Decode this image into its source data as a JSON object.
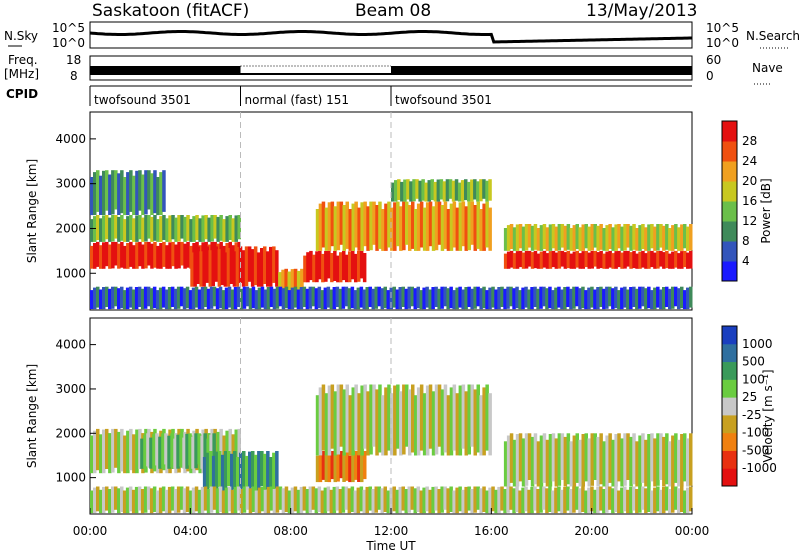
{
  "header": {
    "station": "Saskatoon (fitACF)",
    "beam": "Beam 08",
    "date": "13/May/2013"
  },
  "summary_panels": {
    "nsky_label": "N.Sky",
    "nsky_ticks": [
      "10^5",
      "10^0"
    ],
    "nsearch_label": "N.Search",
    "nsearch_ticks": [
      "10^5",
      "10^0"
    ],
    "freq_label_1": "Freq.",
    "freq_label_2": "[MHz]",
    "freq_ticks": [
      "18",
      "8"
    ],
    "nave_label": "Nave",
    "nave_ticks": [
      "60",
      "0"
    ],
    "cpid_label": "CPID",
    "cpid_segments": [
      {
        "label": "twofsound 3501",
        "start": 0,
        "end": 6
      },
      {
        "label": "normal (fast) 151",
        "start": 6,
        "end": 12
      },
      {
        "label": "twofsound 3501",
        "start": 12,
        "end": 24
      }
    ]
  },
  "chart_data": [
    {
      "type": "heatmap",
      "name": "power",
      "ylabel": "Slant Range [km]",
      "yticks": [
        1000,
        2000,
        3000,
        4000
      ],
      "ylim": [
        180,
        4600
      ],
      "colorbar_label": "Power [dB]",
      "colorbar_ticks": [
        "4",
        "8",
        "12",
        "16",
        "20",
        "24",
        "28"
      ],
      "colors": [
        "#1a1aff",
        "#3355bb",
        "#3f8a5a",
        "#6bbf4a",
        "#c8c820",
        "#f0a020",
        "#f05010",
        "#e41010"
      ],
      "bands": [
        {
          "t0": 0.0,
          "t1": 6.0,
          "r0": 1100,
          "r1": 1700,
          "level": 7
        },
        {
          "t0": 0.0,
          "t1": 6.0,
          "r0": 1700,
          "r1": 2300,
          "level": 3
        },
        {
          "t0": 0.0,
          "t1": 3.0,
          "r0": 2300,
          "r1": 3300,
          "level": 2
        },
        {
          "t0": 4.0,
          "t1": 7.5,
          "r0": 700,
          "r1": 1600,
          "level": 7
        },
        {
          "t0": 7.5,
          "t1": 8.5,
          "r0": 600,
          "r1": 1100,
          "level": 5
        },
        {
          "t0": 8.5,
          "t1": 11.0,
          "r0": 800,
          "r1": 1500,
          "level": 7
        },
        {
          "t0": 9.0,
          "t1": 16.0,
          "r0": 1500,
          "r1": 2600,
          "level": 5
        },
        {
          "t0": 12.0,
          "t1": 16.0,
          "r0": 2600,
          "r1": 3100,
          "level": 3
        },
        {
          "t0": 16.5,
          "t1": 24.0,
          "r0": 1100,
          "r1": 1500,
          "level": 7
        },
        {
          "t0": 16.5,
          "t1": 24.0,
          "r0": 1500,
          "r1": 2100,
          "level": 4
        },
        {
          "t0": 0.0,
          "t1": 24.0,
          "r0": 200,
          "r1": 700,
          "level": 1
        }
      ]
    },
    {
      "type": "heatmap",
      "name": "velocity",
      "ylabel": "Slant Range [km]",
      "yticks": [
        1000,
        2000,
        3000,
        4000
      ],
      "ylim": [
        180,
        4600
      ],
      "colorbar_label": "Velocity [m s⁻¹]",
      "colorbar_ticks": [
        "1000",
        "500",
        "100",
        "25",
        "-25",
        "-100",
        "-500",
        "-1000"
      ],
      "colors": [
        "#1a3fbf",
        "#2f6f9f",
        "#3a9a5a",
        "#6acc40",
        "#c8c8c8",
        "#c8a020",
        "#f08010",
        "#e83010",
        "#e41010"
      ],
      "bands": [
        {
          "t0": 0.0,
          "t1": 6.0,
          "r0": 1100,
          "r1": 2100,
          "level": 4
        },
        {
          "t0": 2.0,
          "t1": 5.0,
          "r0": 1200,
          "r1": 2000,
          "level": 3
        },
        {
          "t0": 4.5,
          "t1": 7.5,
          "r0": 700,
          "r1": 1600,
          "level": 2
        },
        {
          "t0": 9.0,
          "t1": 11.0,
          "r0": 900,
          "r1": 1600,
          "level": 6
        },
        {
          "t0": 9.0,
          "t1": 16.0,
          "r0": 1500,
          "r1": 3100,
          "level": 4
        },
        {
          "t0": 16.5,
          "t1": 24.0,
          "r0": 800,
          "r1": 2000,
          "level": 4
        },
        {
          "t0": 0.0,
          "t1": 24.0,
          "r0": 200,
          "r1": 800,
          "level": 4
        }
      ]
    }
  ],
  "x_axis": {
    "label": "Time UT",
    "ticks": [
      "00:00",
      "04:00",
      "08:00",
      "12:00",
      "16:00",
      "20:00",
      "00:00"
    ],
    "tick_hours": [
      0,
      4,
      8,
      12,
      16,
      20,
      24
    ],
    "xlim": [
      0,
      24
    ]
  }
}
